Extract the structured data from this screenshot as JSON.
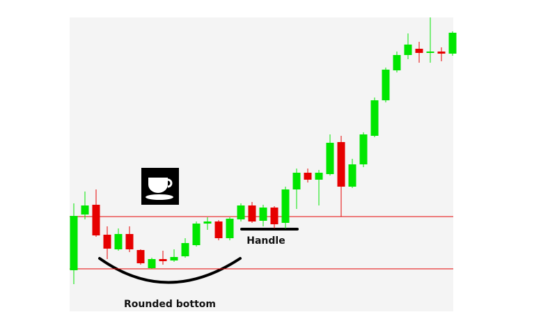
{
  "chart_data": {
    "type": "candlestick",
    "color_up": "#00e600",
    "color_down": "#e60000",
    "ylim": [
      0,
      422
    ],
    "open": [
      59,
      139,
      153,
      110,
      89,
      111,
      88,
      62,
      75,
      73,
      79,
      95,
      126,
      129,
      105,
      132,
      152,
      130,
      149,
      127,
      175,
      199,
      189,
      197,
      243,
      179,
      211,
      252,
      303,
      346,
      368,
      377,
      371,
      373,
      370
    ],
    "close": [
      137,
      152,
      109,
      90,
      111,
      89,
      69,
      75,
      72,
      78,
      98,
      126,
      129,
      105,
      133,
      152,
      129,
      149,
      125,
      175,
      199,
      189,
      199,
      242,
      179,
      211,
      254,
      303,
      347,
      368,
      383,
      371,
      373,
      370,
      400
    ],
    "high": [
      155,
      172,
      175,
      122,
      119,
      122,
      89,
      77,
      87,
      89,
      105,
      129,
      135,
      131,
      135,
      155,
      157,
      153,
      151,
      179,
      205,
      205,
      203,
      254,
      252,
      219,
      257,
      307,
      350,
      373,
      399,
      387,
      422,
      379,
      402
    ],
    "low": [
      39,
      132,
      107,
      75,
      87,
      85,
      67,
      61,
      67,
      71,
      77,
      93,
      117,
      102,
      102,
      129,
      127,
      122,
      119,
      119,
      147,
      185,
      152,
      195,
      136,
      177,
      207,
      250,
      300,
      343,
      362,
      357,
      357,
      359,
      367
    ],
    "reference_lines": [
      {
        "value": 136,
        "color": "#e60000"
      },
      {
        "value": 61,
        "color": "#e60000"
      }
    ],
    "annotations": [
      "Handle",
      "Rounded bottom"
    ]
  }
}
